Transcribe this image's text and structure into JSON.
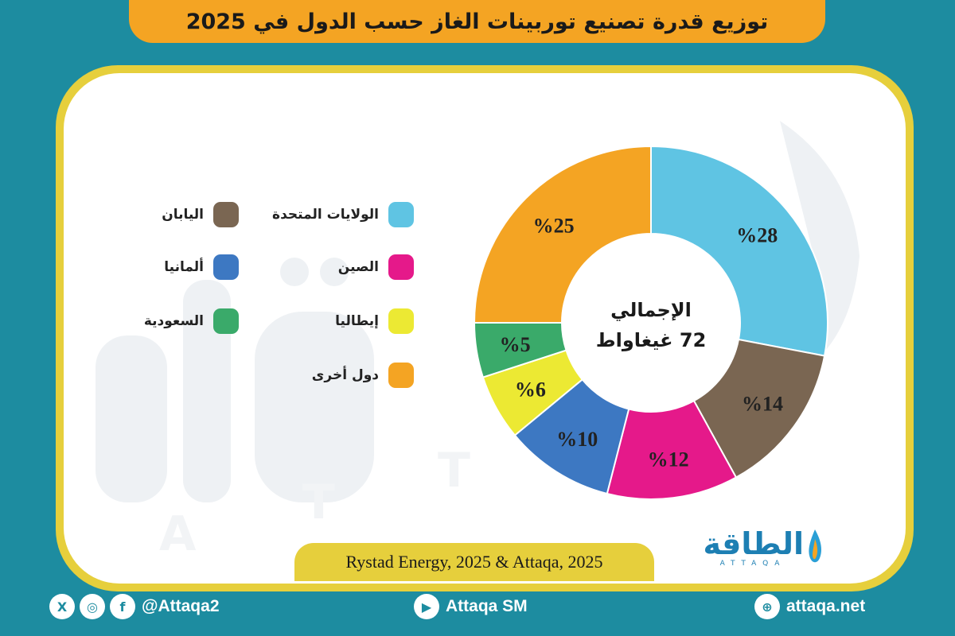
{
  "title": "توزيع قدرة تصنيع توربينات الغاز حسب الدول في 2025",
  "chart_data": {
    "type": "pie",
    "donut": true,
    "center_label_line1": "الإجمالي",
    "center_label_line2": "72 غيغاواط",
    "slices": [
      {
        "name": "الولايات المتحدة",
        "value": 28,
        "label": "%28",
        "color": "#5fc4e3"
      },
      {
        "name": "اليابان",
        "value": 14,
        "label": "%14",
        "color": "#7a6652"
      },
      {
        "name": "الصين",
        "value": 12,
        "label": "%12",
        "color": "#e5198a"
      },
      {
        "name": "ألمانيا",
        "value": 10,
        "label": "%10",
        "color": "#3d78c2"
      },
      {
        "name": "إيطاليا",
        "value": 6,
        "label": "%6",
        "color": "#ece933"
      },
      {
        "name": "السعودية",
        "value": 5,
        "label": "%5",
        "color": "#3aaa6a"
      },
      {
        "name": "دول أخرى",
        "value": 25,
        "label": "%25",
        "color": "#f4a423"
      }
    ],
    "legend": [
      {
        "name": "الولايات المتحدة",
        "color": "#5fc4e3"
      },
      {
        "name": "اليابان",
        "color": "#7a6652"
      },
      {
        "name": "الصين",
        "color": "#e5198a"
      },
      {
        "name": "ألمانيا",
        "color": "#3d78c2"
      },
      {
        "name": "إيطاليا",
        "color": "#ece933"
      },
      {
        "name": "السعودية",
        "color": "#3aaa6a"
      },
      {
        "name": "دول أخرى",
        "color": "#f4a423"
      }
    ]
  },
  "source": "Rystad Energy, 2025 & Attaqa, 2025",
  "logo": {
    "text": "الطاقة",
    "sub": "ATTAQA"
  },
  "footer": {
    "social_handle": "@Attaqa2",
    "youtube": "Attaqa SM",
    "website": "attaqa.net"
  },
  "colors": {
    "background": "#1d8ca0",
    "accent": "#f4a423",
    "frame": "#e6cf3c"
  }
}
